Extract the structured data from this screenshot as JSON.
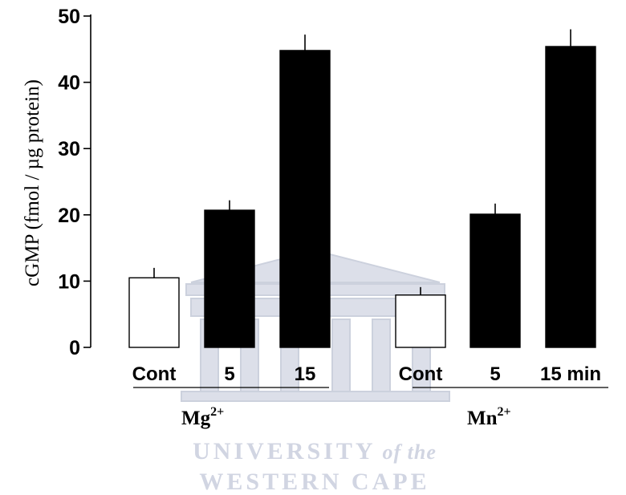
{
  "chart_data": {
    "type": "bar",
    "ylabel": "cGMP (fmol  / µg protein)",
    "ylim": [
      0,
      50
    ],
    "yticks": [
      0,
      10,
      20,
      30,
      40,
      50
    ],
    "grid": false,
    "categories": [
      "Cont",
      "5",
      "15",
      "Cont",
      "5",
      "15 min"
    ],
    "values": [
      10.5,
      20.7,
      44.8,
      7.9,
      20.1,
      45.4
    ],
    "errors": [
      1.5,
      1.5,
      2.4,
      1.2,
      1.6,
      2.6
    ],
    "bar_colors": [
      "#ffffff",
      "#000000",
      "#000000",
      "#ffffff",
      "#000000",
      "#000000"
    ],
    "groups": [
      {
        "label": "Mg",
        "superscript": "2+",
        "categories": [
          0,
          1,
          2
        ]
      },
      {
        "label": "Mn",
        "superscript": "2+",
        "categories": [
          3,
          4,
          5
        ]
      }
    ]
  },
  "watermark": {
    "line1_main": "UNIVERSITY",
    "line1_suffix": "of the",
    "line2": "WESTERN CAPE",
    "color": "#c9cede"
  }
}
